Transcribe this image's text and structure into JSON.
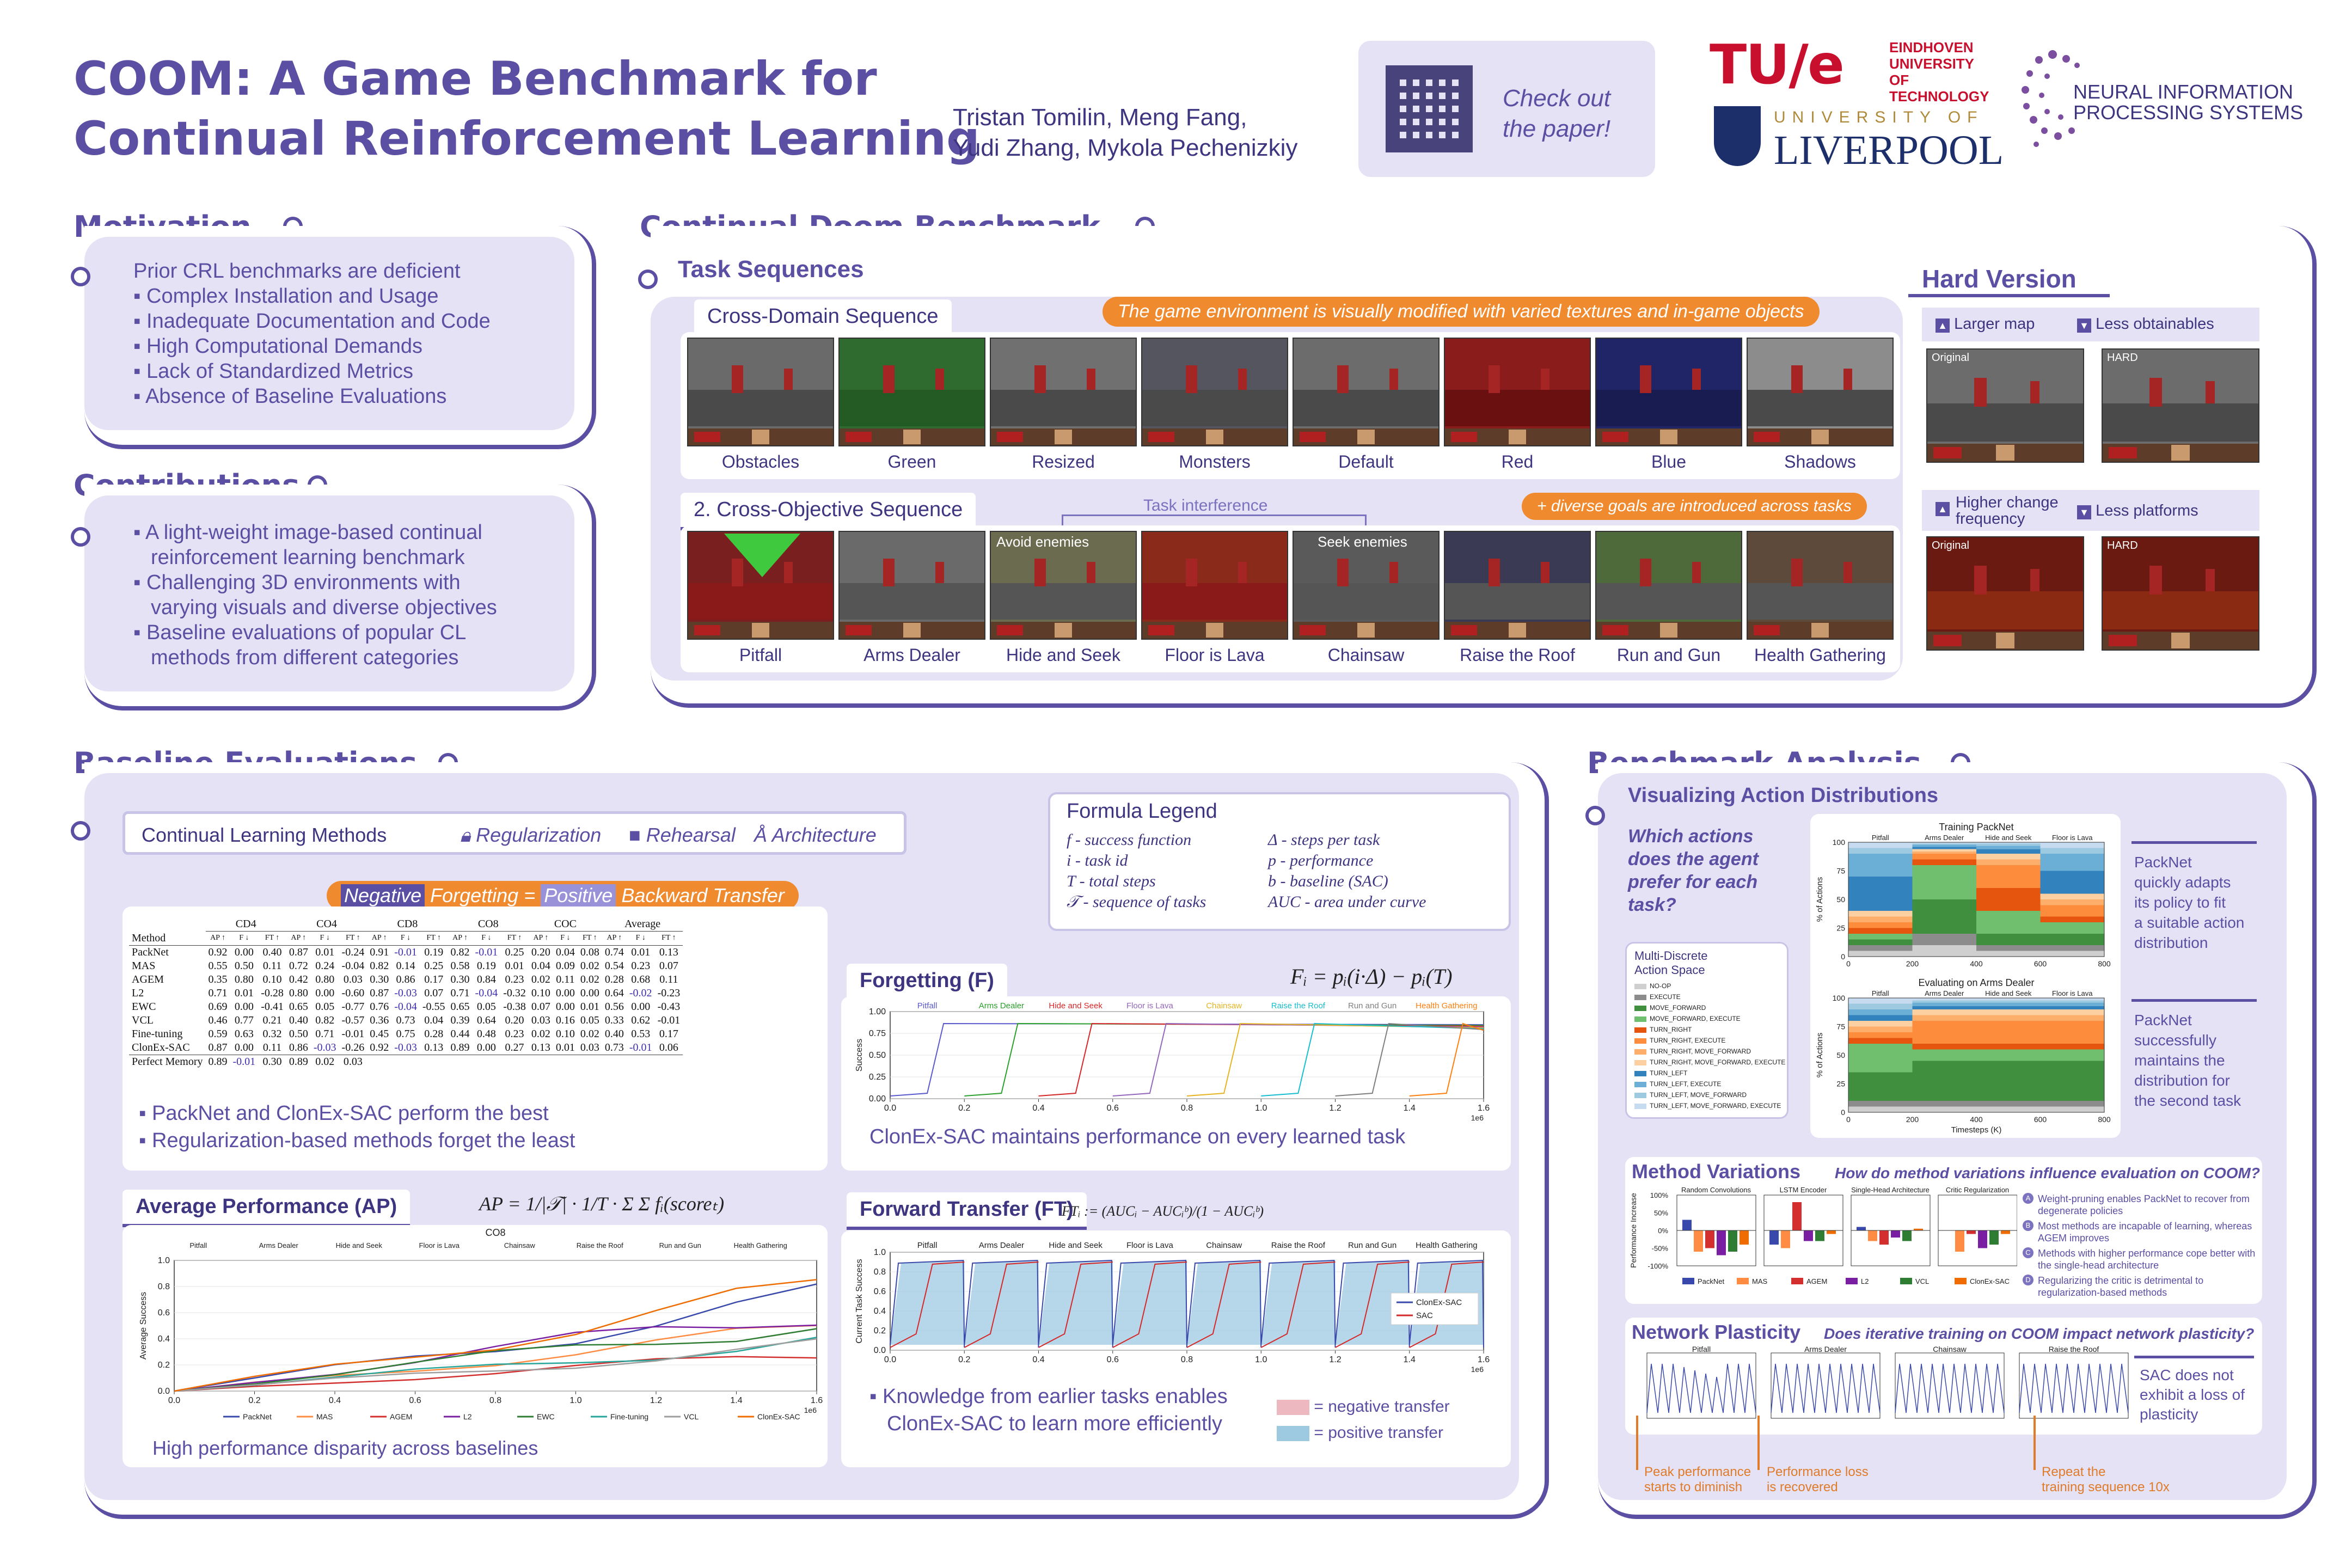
{
  "header": {
    "title_line1": "COOM: A Game Benchmark for",
    "title_line2": "Continual Reinforcement Learning",
    "authors_line1": "Tristan Tomilin, Meng Fang,",
    "authors_line2": "Yudi Zhang, Mykola Pechenizkiy",
    "qr_label_line1": "Check out",
    "qr_label_line2": "the paper!",
    "tue_logo": "TU/e",
    "tue_text1": "EINDHOVEN",
    "tue_text2": "UNIVERSITY OF",
    "tue_text3": "TECHNOLOGY",
    "liverpool_top": "UNIVERSITY OF",
    "liverpool_main": "LIVERPOOL",
    "neurips_line1": "NEURAL INFORMATION",
    "neurips_line2": "PROCESSING SYSTEMS"
  },
  "motivation": {
    "title": "Motivation",
    "lead": "Prior CRL benchmarks are deficient",
    "items": [
      "Complex Installation and Usage",
      "Inadequate Documentation and Code",
      "High Computational Demands",
      "Lack of Standardized Metrics",
      "Absence of Baseline Evaluations"
    ]
  },
  "contributions": {
    "title": "Contributions",
    "items": [
      [
        "A light-weight image-based continual",
        "reinforcement learning benchmark"
      ],
      [
        "Challenging 3D environments with",
        "varying visuals and diverse objectives"
      ],
      [
        "Baseline evaluations of popular CL",
        "methods from different categories"
      ]
    ]
  },
  "benchmark": {
    "title": "Continual Doom Benchmark",
    "task_sequences": "Task Sequences",
    "cross_domain": "Cross-Domain Sequence",
    "cross_domain_note": "The game environment is visually modified with varied textures and in-game objects",
    "cross_domain_tasks": [
      "Obstacles",
      "Green",
      "Resized",
      "Monsters",
      "Default",
      "Red",
      "Blue",
      "Shadows"
    ],
    "cross_objective": "2. Cross-Objective Sequence",
    "cross_objective_note": "+ diverse goals are introduced across tasks",
    "task_interference": "Task interference",
    "avoid_enemies": "Avoid enemies",
    "seek_enemies": "Seek enemies",
    "cross_objective_tasks": [
      "Pitfall",
      "Arms Dealer",
      "Hide and Seek",
      "Floor is Lava",
      "Chainsaw",
      "Raise the Roof",
      "Run and Gun",
      "Health Gathering"
    ],
    "hard": {
      "title": "Hard Version",
      "opt1": "Larger map",
      "opt2": "Less obtainables",
      "opt3_line1": "Higher change",
      "opt3_line2": "frequency",
      "opt4": "Less platforms",
      "original": "Original",
      "hard": "HARD"
    }
  },
  "baseline": {
    "title": "Baseline Evaluations",
    "methods_label": "Continual Learning Methods",
    "reg": "Regularization",
    "reh": "Rehearsal",
    "arch": "Architecture",
    "formula_title": "Formula Legend",
    "legend_left": [
      "f - success function",
      "i - task id",
      "T - total steps",
      "𝒯 - sequence of tasks"
    ],
    "legend_right": [
      "Δ - steps per task",
      "p - performance",
      "b - baseline (SAC)",
      "AUC - area under curve"
    ],
    "pill_neg": "Negative",
    "pill_mid": "Forgetting =",
    "pill_pos": "Positive",
    "pill_end": "Backward Transfer",
    "table": {
      "groups": [
        "CD4",
        "CO4",
        "CD8",
        "CO8",
        "COC",
        "Average"
      ],
      "sub": [
        "AP ↑",
        "F ↓",
        "FT ↑"
      ],
      "method_header": "Method",
      "rows": [
        [
          "PackNet",
          "0.92",
          "0.00",
          "0.40",
          "0.87",
          "0.01",
          "-0.24",
          "0.91",
          "-0.01",
          "0.19",
          "0.82",
          "-0.01",
          "0.25",
          "0.20",
          "0.04",
          "0.08",
          "0.74",
          "0.01",
          "0.13"
        ],
        [
          "MAS",
          "0.55",
          "0.50",
          "0.11",
          "0.72",
          "0.24",
          "-0.04",
          "0.82",
          "0.14",
          "0.25",
          "0.58",
          "0.19",
          "0.01",
          "0.04",
          "0.09",
          "0.02",
          "0.54",
          "0.23",
          "0.07"
        ],
        [
          "AGEM",
          "0.35",
          "0.80",
          "0.10",
          "0.42",
          "0.80",
          "0.03",
          "0.30",
          "0.86",
          "0.17",
          "0.30",
          "0.84",
          "0.23",
          "0.02",
          "0.11",
          "0.02",
          "0.28",
          "0.68",
          "0.11"
        ],
        [
          "L2",
          "0.71",
          "0.01",
          "-0.28",
          "0.80",
          "0.00",
          "-0.60",
          "0.87",
          "-0.03",
          "0.07",
          "0.71",
          "-0.04",
          "-0.32",
          "0.10",
          "0.00",
          "0.00",
          "0.64",
          "-0.02",
          "-0.23"
        ],
        [
          "EWC",
          "0.69",
          "0.00",
          "-0.41",
          "0.65",
          "0.05",
          "-0.77",
          "0.76",
          "-0.04",
          "-0.55",
          "0.65",
          "0.05",
          "-0.38",
          "0.07",
          "0.00",
          "0.01",
          "0.56",
          "0.00",
          "-0.43"
        ],
        [
          "VCL",
          "0.46",
          "0.77",
          "0.21",
          "0.40",
          "0.82",
          "-0.57",
          "0.36",
          "0.73",
          "0.04",
          "0.39",
          "0.64",
          "0.20",
          "0.03",
          "0.16",
          "0.05",
          "0.33",
          "0.62",
          "-0.01"
        ],
        [
          "Fine-tuning",
          "0.59",
          "0.63",
          "0.32",
          "0.50",
          "0.71",
          "-0.01",
          "0.45",
          "0.75",
          "0.28",
          "0.44",
          "0.48",
          "0.23",
          "0.02",
          "0.10",
          "0.02",
          "0.40",
          "0.53",
          "0.17"
        ],
        [
          "ClonEx-SAC",
          "0.87",
          "0.00",
          "0.11",
          "0.86",
          "-0.03",
          "-0.26",
          "0.92",
          "-0.03",
          "0.13",
          "0.89",
          "0.00",
          "0.27",
          "0.13",
          "0.01",
          "0.03",
          "0.73",
          "-0.01",
          "0.06"
        ],
        [
          "Perfect Memory",
          "0.89",
          "-0.01",
          "0.30",
          "0.89",
          "0.02",
          "0.03",
          "",
          "",
          "",
          "",
          "",
          "",
          "",
          "",
          "",
          "",
          "",
          ""
        ]
      ]
    },
    "table_notes": [
      "PackNet and ClonEx-SAC perform the best",
      "Regularization-based methods forget the least"
    ],
    "forgetting": {
      "title": "Forgetting (F)",
      "formula": "Fᵢ = pᵢ(i·Δ) − pᵢ(T)",
      "note": "ClonEx-SAC maintains performance on every learned task",
      "tasks": [
        "Pitfall",
        "Arms Dealer",
        "Hide and Seek",
        "Floor is Lava",
        "Chainsaw",
        "Raise the Roof",
        "Run and Gun",
        "Health Gathering"
      ],
      "ylabel": "Success",
      "xticks": [
        "0.0",
        "0.2",
        "0.4",
        "0.6",
        "0.8",
        "1.0",
        "1.2",
        "1.4",
        "1.6"
      ],
      "yticks": [
        "0.00",
        "0.25",
        "0.50",
        "0.75",
        "1.00"
      ],
      "exp": "1e6"
    },
    "ap": {
      "title": "Average Performance (AP)",
      "formula": "AP = 1/|𝒯| · 1/T · Σ Σ fᵢ(scoreₜ)",
      "chart_title": "CO8",
      "ylabel": "Average Success",
      "note": "High performance disparity across baselines",
      "legend": [
        "PackNet",
        "MAS",
        "AGEM",
        "L2",
        "EWC",
        "Fine-tuning",
        "VCL",
        "ClonEx-SAC"
      ],
      "xticks": [
        "0.0",
        "0.2",
        "0.4",
        "0.6",
        "0.8",
        "1.0",
        "1.2",
        "1.4",
        "1.6"
      ],
      "yticks": [
        "0.0",
        "0.2",
        "0.4",
        "0.6",
        "0.8",
        "1.0"
      ],
      "exp": "1e6"
    },
    "ft": {
      "title": "Forward Transfer (FT)",
      "formula": "FTᵢ := (AUCᵢ − AUCᵢᵇ)/(1 − AUCᵢᵇ)",
      "ylabel": "Current Task Success",
      "legend": [
        "ClonEx-SAC",
        "SAC"
      ],
      "notes": [
        "Knowledge from earlier tasks enables",
        "ClonEx-SAC to learn more efficiently"
      ],
      "neg": "= negative transfer",
      "pos": "= positive transfer",
      "xticks": [
        "0.0",
        "0.2",
        "0.4",
        "0.6",
        "0.8",
        "1.0",
        "1.2",
        "1.4",
        "1.6"
      ],
      "yticks": [
        "0.0",
        "0.2",
        "0.4",
        "0.6",
        "0.8",
        "1.0"
      ],
      "exp": "1e6"
    }
  },
  "analysis": {
    "title": "Benchmark Analysis",
    "vis_title": "Visualizing Action Distributions",
    "question": [
      "Which actions",
      "does the agent",
      "prefer for each",
      "task?"
    ],
    "action_space_title": [
      "Multi-Discrete",
      "Action Space"
    ],
    "actions": [
      "NO-OP",
      "EXECUTE",
      "MOVE_FORWARD",
      "MOVE_FORWARD, EXECUTE",
      "TURN_RIGHT",
      "TURN_RIGHT, EXECUTE",
      "TURN_RIGHT, MOVE_FORWARD",
      "TURN_RIGHT, MOVE_FORWARD, EXECUTE",
      "TURN_LEFT",
      "TURN_LEFT, EXECUTE",
      "TURN_LEFT, MOVE_FORWARD",
      "TURN_LEFT, MOVE_FORWARD, EXECUTE"
    ],
    "training_title": "Training PackNet",
    "eval_title": "Evaluating on Arms Dealer",
    "ylabel": "% of Actions",
    "xlabel": "Timesteps (K)",
    "xticks": [
      "0",
      "200",
      "400",
      "600",
      "800"
    ],
    "yticks": [
      "0",
      "25",
      "50",
      "75",
      "100"
    ],
    "mini_tasks": [
      "Pitfall",
      "Arms Dealer",
      "Hide and Seek",
      "Floor is Lava"
    ],
    "packnet_note1": [
      "PackNet",
      "quickly adapts",
      "its policy to fit",
      "a suitable action",
      "distribution"
    ],
    "packnet_note2": [
      "PackNet",
      "successfully",
      "maintains the",
      "distribution for",
      "the second task"
    ],
    "variations_title": "Method Variations",
    "variations_q": "How do method variations influence evaluation on COOM?",
    "variations_groups": [
      "Random Convolutions",
      "LSTM Encoder",
      "Single-Head Architecture",
      "Critic Regularization"
    ],
    "variations_ylabel": "Performance Increase",
    "variations_yticks": [
      "100%",
      "50%",
      "0%",
      "-50%",
      "-100%"
    ],
    "variations_legend": [
      "PackNet",
      "MAS",
      "AGEM",
      "L2",
      "VCL",
      "ClonEx-SAC"
    ],
    "variations_notes": [
      "Weight-pruning enables PackNet to recover from degenerate policies",
      "Most methods are incapable of learning, whereas AGEM improves",
      "Methods with higher performance cope better with the single-head architecture",
      "Regularizing the critic is detrimental to regularization-based methods"
    ],
    "plasticity_title": "Network Plasticity",
    "plasticity_q": "Does iterative training on COOM impact network plasticity?",
    "plasticity_tasks": [
      "Pitfall",
      "Arms Dealer",
      "Chainsaw",
      "Raise the Roof"
    ],
    "plasticity_note": [
      "SAC does not",
      "exhibit a loss of",
      "plasticity"
    ],
    "ann1": [
      "Peak performance",
      "starts to diminish"
    ],
    "ann2": [
      "Performance loss",
      "is recovered"
    ],
    "ann3": [
      "Repeat the",
      "training sequence 10x"
    ]
  }
}
